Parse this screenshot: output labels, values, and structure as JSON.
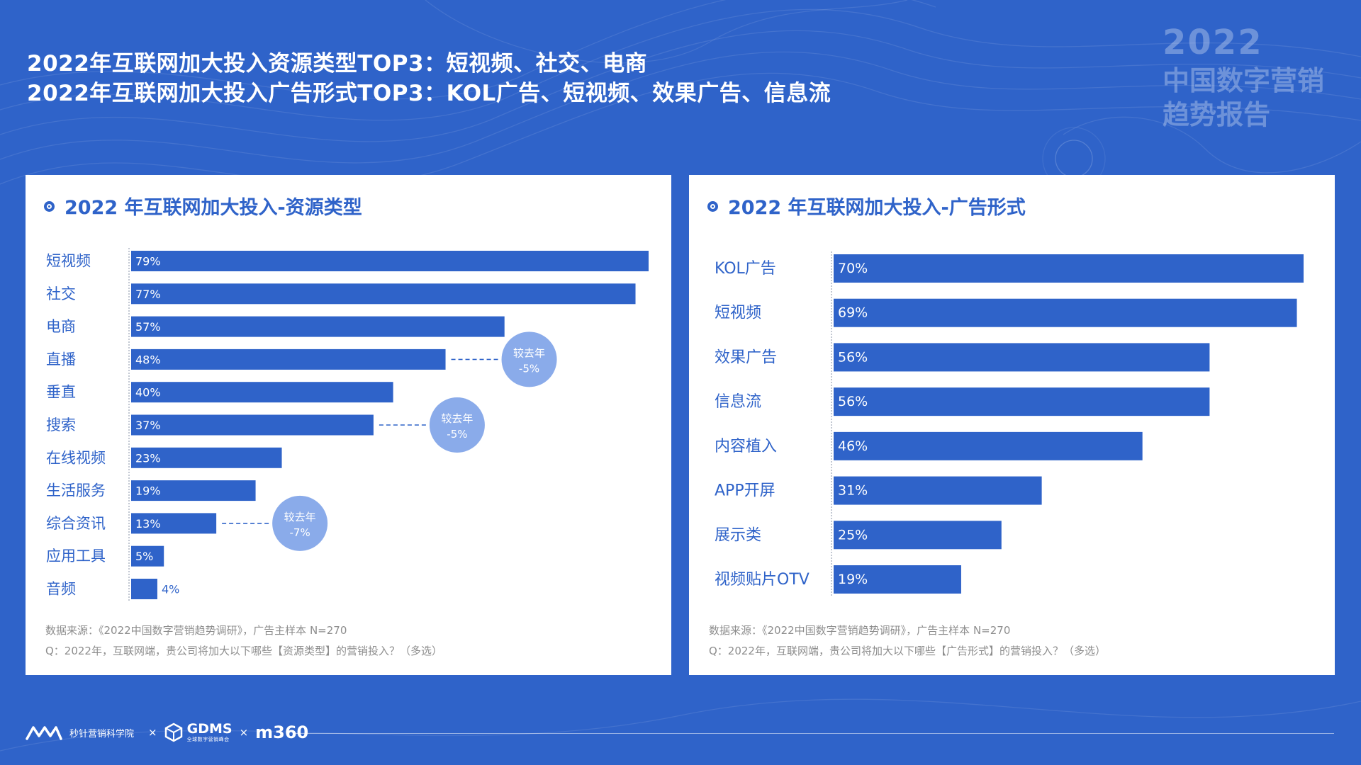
{
  "headline": {
    "line1": "2022年互联网加大投入资源类型TOP3：短视频、社交、电商",
    "line2": "2022年互联网加大投入广告形式TOP3：KOL广告、短视频、效果广告、信息流"
  },
  "brand": {
    "year": "2022",
    "line1": "中国数字营销",
    "line2": "趋势报告"
  },
  "chart_data": [
    {
      "type": "bar",
      "orientation": "horizontal",
      "title": "2022 年互联网加大投入-资源类型",
      "categories": [
        "短视频",
        "社交",
        "电商",
        "直播",
        "垂直",
        "搜索",
        "在线视频",
        "生活服务",
        "综合资讯",
        "应用工具",
        "音频"
      ],
      "values": [
        79,
        77,
        57,
        48,
        40,
        37,
        23,
        19,
        13,
        5,
        4
      ],
      "value_labels": [
        "79%",
        "77%",
        "57%",
        "48%",
        "40%",
        "37%",
        "23%",
        "19%",
        "13%",
        "5%",
        "4%"
      ],
      "annotations": [
        {
          "category": "直播",
          "line1": "较去年",
          "line2": "-5%"
        },
        {
          "category": "搜索",
          "line1": "较去年",
          "line2": "-5%"
        },
        {
          "category": "综合资讯",
          "line1": "较去年",
          "line2": "-7%"
        }
      ],
      "bar_color": "#2f63c9",
      "annotation_color": "#8aabea",
      "source": "数据来源：《2022中国数字营销趋势调研》，广告主样本 N=270",
      "question": "Q：2022年，互联网端，贵公司将加大以下哪些【资源类型】的营销投入？（多选）"
    },
    {
      "type": "bar",
      "orientation": "horizontal",
      "title": "2022 年互联网加大投入-广告形式",
      "categories": [
        "KOL广告",
        "短视频",
        "效果广告",
        "信息流",
        "内容植入",
        "APP开屏",
        "展示类",
        "视频贴片OTV"
      ],
      "values": [
        70,
        69,
        56,
        56,
        46,
        31,
        25,
        19
      ],
      "value_labels": [
        "70%",
        "69%",
        "56%",
        "56%",
        "46%",
        "31%",
        "25%",
        "19%"
      ],
      "bar_color": "#2f63c9",
      "source": "数据来源：《2022中国数字营销趋势调研》，广告主样本 N=270",
      "question": "Q：2022年，互联网端，贵公司将加大以下哪些【广告形式】的营销投入？（多选）"
    }
  ],
  "footer": {
    "org1": "秒针营销科学院",
    "sep": "×",
    "org2": "GDMS",
    "org2_sub": "全球数字营销峰会",
    "org3": "m360"
  },
  "colors": {
    "background": "#2f63c9",
    "bar": "#2f63c9",
    "panel": "#ffffff",
    "bubble": "#8aabea",
    "note": "#8d8d8d"
  }
}
